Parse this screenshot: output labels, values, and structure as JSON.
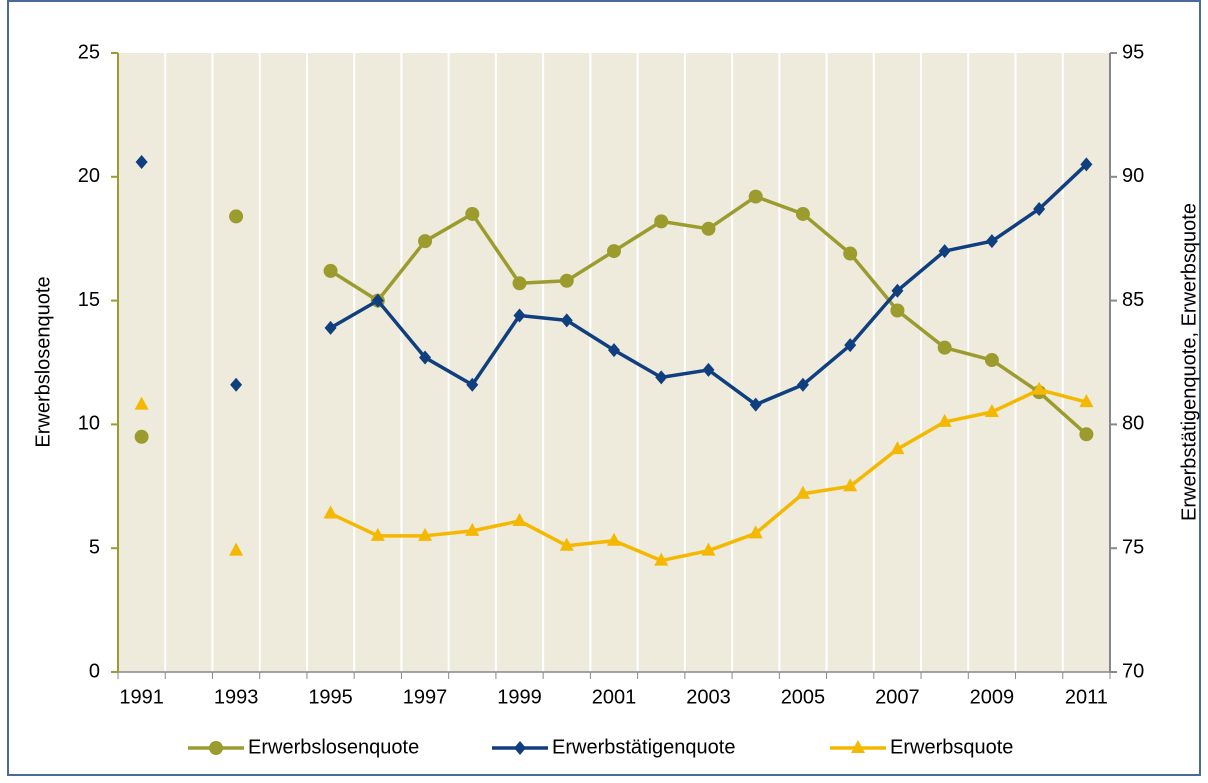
{
  "chart_data": {
    "type": "line",
    "categories": [
      "1991",
      null,
      "1993",
      null,
      "1995",
      null,
      "1997",
      null,
      "1999",
      null,
      "2001",
      null,
      "2003",
      null,
      "2005",
      null,
      "2007",
      null,
      "2009",
      null,
      "2011"
    ],
    "series": [
      {
        "name": "Erwerbslosenquote",
        "color": "#9c9c2e",
        "marker": "circle",
        "axis": "y",
        "values": [
          9.5,
          null,
          18.4,
          null,
          16.2,
          15.0,
          17.4,
          18.5,
          15.7,
          15.8,
          17.0,
          18.2,
          17.9,
          19.2,
          18.5,
          16.9,
          14.6,
          13.1,
          12.6,
          11.3,
          9.6
        ]
      },
      {
        "name": "Erwerbstätigenquote",
        "color": "#103f7f",
        "marker": "diamond",
        "axis": "y2",
        "values": [
          90.6,
          null,
          81.6,
          null,
          83.9,
          85.0,
          82.7,
          81.6,
          84.4,
          84.2,
          83.0,
          81.9,
          82.2,
          80.8,
          81.6,
          83.2,
          85.4,
          87.0,
          87.4,
          88.7,
          90.5
        ]
      },
      {
        "name": "Erwerbsquote",
        "color": "#f5b800",
        "marker": "triangle",
        "axis": "y2",
        "values": [
          80.8,
          null,
          74.9,
          null,
          76.4,
          75.5,
          75.5,
          75.7,
          76.1,
          75.1,
          75.3,
          74.5,
          74.9,
          75.6,
          77.2,
          77.5,
          79.0,
          80.1,
          80.5,
          81.4,
          80.9
        ]
      }
    ],
    "ylabel": "Erwerbslosenquote",
    "y2label": "Erwerbstätigenquote, Erwerbsquote",
    "ylim": [
      0,
      25
    ],
    "yticks": [
      0,
      5,
      10,
      15,
      20,
      25
    ],
    "y2lim": [
      70,
      95
    ],
    "y2ticks": [
      70,
      75,
      80,
      85,
      90,
      95
    ],
    "grid": true,
    "legend": "bottom"
  }
}
